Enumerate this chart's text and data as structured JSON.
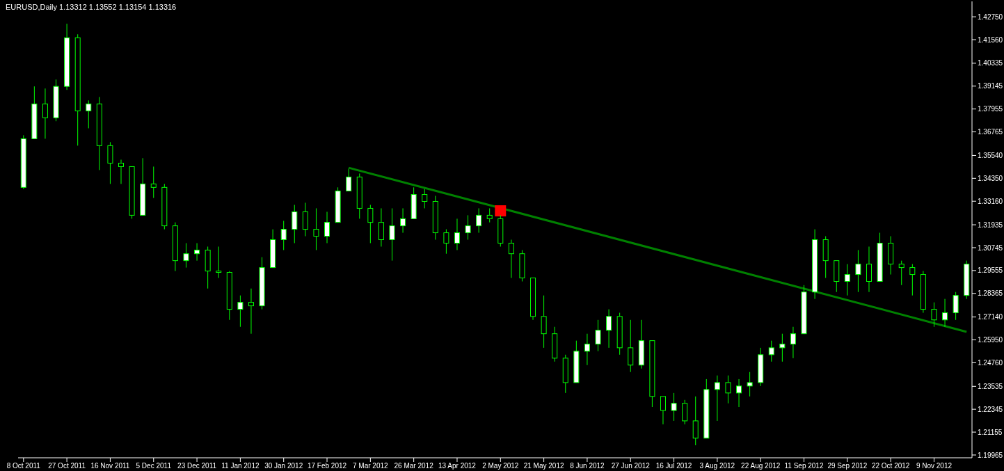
{
  "chart_data": {
    "type": "candlestick",
    "title": "EURUSD,Daily 1.13312 1.13552 1.13154 1.13316",
    "color": "#00ff00",
    "categories": [
      "8 Oct 2011",
      null,
      null,
      null,
      "27 Oct 2011",
      null,
      null,
      null,
      "16 Nov 2011",
      null,
      null,
      null,
      "5 Dec 2011",
      null,
      null,
      null,
      "23 Dec 2011",
      null,
      null,
      null,
      "11 Jan 2012",
      null,
      null,
      null,
      "30 Jan 2012",
      null,
      null,
      null,
      "17 Feb 2012",
      null,
      null,
      null,
      "7 Mar 2012",
      null,
      null,
      null,
      "26 Mar 2012",
      null,
      null,
      null,
      "13 Apr 2012",
      null,
      null,
      null,
      "2 May 2012",
      null,
      null,
      null,
      "21 May 2012",
      null,
      null,
      null,
      "8 Jun 2012",
      null,
      null,
      null,
      "27 Jun 2012",
      null,
      null,
      null,
      "16 Jul 2012",
      null,
      null,
      null,
      "3 Aug 2012",
      null,
      null,
      null,
      "22 Aug 2012",
      null,
      null,
      null,
      "11 Sep 2012",
      null,
      null,
      null,
      "29 Sep 2012",
      null,
      null,
      null,
      "22 Oct 2012",
      null,
      null,
      null,
      "9 Nov 2012",
      null,
      null,
      null
    ],
    "ohlc": [
      [
        1.3388,
        1.3659,
        1.338,
        1.3641
      ],
      [
        1.3641,
        1.3913,
        1.3641,
        1.3822
      ],
      [
        1.3822,
        1.3902,
        1.3641,
        1.375
      ],
      [
        1.375,
        1.3949,
        1.3732,
        1.3913
      ],
      [
        1.3913,
        1.4239,
        1.3895,
        1.4166
      ],
      [
        1.4166,
        1.4184,
        1.3605,
        1.3786
      ],
      [
        1.3786,
        1.384,
        1.3695,
        1.3822
      ],
      [
        1.3822,
        1.3858,
        1.3478,
        1.3605
      ],
      [
        1.3605,
        1.3623,
        1.3406,
        1.3514
      ],
      [
        1.3514,
        1.3532,
        1.3406,
        1.3496
      ],
      [
        1.3496,
        1.3496,
        1.3225,
        1.3243
      ],
      [
        1.3243,
        1.354,
        1.3243,
        1.3406
      ],
      [
        1.3406,
        1.3496,
        1.3333,
        1.3388
      ],
      [
        1.3388,
        1.3406,
        1.317,
        1.3188
      ],
      [
        1.3188,
        1.3206,
        1.2953,
        1.3007
      ],
      [
        1.3007,
        1.3098,
        1.2971,
        1.3043
      ],
      [
        1.3043,
        1.3098,
        1.3007,
        1.3062
      ],
      [
        1.3062,
        1.308,
        1.2862,
        1.2953
      ],
      [
        1.2953,
        1.308,
        1.2917,
        1.2946
      ],
      [
        1.2946,
        1.2953,
        1.2699,
        1.2754
      ],
      [
        1.2754,
        1.2826,
        1.2663,
        1.279
      ],
      [
        1.279,
        1.2862,
        1.2627,
        1.2772
      ],
      [
        1.2772,
        1.3025,
        1.2754,
        1.2971
      ],
      [
        1.2971,
        1.317,
        1.2971,
        1.3116
      ],
      [
        1.3116,
        1.3214,
        1.3062,
        1.317
      ],
      [
        1.317,
        1.3297,
        1.3098,
        1.3261
      ],
      [
        1.3261,
        1.3308,
        1.3134,
        1.317
      ],
      [
        1.317,
        1.3279,
        1.3062,
        1.3134
      ],
      [
        1.3134,
        1.3261,
        1.3098,
        1.3206
      ],
      [
        1.3206,
        1.3388,
        1.3206,
        1.3369
      ],
      [
        1.3369,
        1.3485,
        1.3369,
        1.3442
      ],
      [
        1.3442,
        1.346,
        1.3225,
        1.3279
      ],
      [
        1.3279,
        1.3297,
        1.3098,
        1.3206
      ],
      [
        1.3206,
        1.3279,
        1.308,
        1.3116
      ],
      [
        1.3116,
        1.3279,
        1.3007,
        1.3188
      ],
      [
        1.3188,
        1.3279,
        1.3152,
        1.3225
      ],
      [
        1.3225,
        1.3388,
        1.3225,
        1.3351
      ],
      [
        1.3351,
        1.338,
        1.3279,
        1.3315
      ],
      [
        1.3315,
        1.3344,
        1.3116,
        1.3152
      ],
      [
        1.3152,
        1.317,
        1.3043,
        1.3098
      ],
      [
        1.3098,
        1.3225,
        1.3062,
        1.3152
      ],
      [
        1.3152,
        1.3243,
        1.3116,
        1.3188
      ],
      [
        1.3188,
        1.3279,
        1.3152,
        1.3243
      ],
      [
        1.3243,
        1.3279,
        1.3206,
        1.3225
      ],
      [
        1.3225,
        1.3243,
        1.308,
        1.3098
      ],
      [
        1.3098,
        1.3116,
        1.2917,
        1.3043
      ],
      [
        1.3043,
        1.3062,
        1.2899,
        1.2917
      ],
      [
        1.2917,
        1.2917,
        1.2699,
        1.2717
      ],
      [
        1.2717,
        1.2826,
        1.2554,
        1.2627
      ],
      [
        1.2627,
        1.2663,
        1.2482,
        1.25
      ],
      [
        1.25,
        1.2518,
        1.2319,
        1.2373
      ],
      [
        1.2373,
        1.2591,
        1.2373,
        1.2536
      ],
      [
        1.2536,
        1.2627,
        1.2464,
        1.2573
      ],
      [
        1.2573,
        1.2699,
        1.2536,
        1.2645
      ],
      [
        1.2645,
        1.2754,
        1.2554,
        1.2717
      ],
      [
        1.2717,
        1.2736,
        1.2518,
        1.2554
      ],
      [
        1.2554,
        1.2699,
        1.2428,
        1.2464
      ],
      [
        1.2464,
        1.2699,
        1.2446,
        1.2591
      ],
      [
        1.2591,
        1.2591,
        1.2246,
        1.2301
      ],
      [
        1.2301,
        1.2301,
        1.2156,
        1.2228
      ],
      [
        1.2228,
        1.2319,
        1.2174,
        1.2265
      ],
      [
        1.2265,
        1.2283,
        1.2156,
        1.2174
      ],
      [
        1.2174,
        1.2301,
        1.2047,
        1.2084
      ],
      [
        1.2084,
        1.2391,
        1.2084,
        1.2337
      ],
      [
        1.2337,
        1.241,
        1.2174,
        1.2373
      ],
      [
        1.2373,
        1.241,
        1.2265,
        1.2319
      ],
      [
        1.2319,
        1.2391,
        1.2246,
        1.2355
      ],
      [
        1.2355,
        1.2428,
        1.2301,
        1.2373
      ],
      [
        1.2373,
        1.2554,
        1.2355,
        1.2518
      ],
      [
        1.2518,
        1.2591,
        1.2482,
        1.2554
      ],
      [
        1.2554,
        1.2627,
        1.2482,
        1.2573
      ],
      [
        1.2573,
        1.2663,
        1.25,
        1.2627
      ],
      [
        1.2627,
        1.288,
        1.2627,
        1.2844
      ],
      [
        1.2844,
        1.317,
        1.2808,
        1.3116
      ],
      [
        1.3116,
        1.3134,
        1.2917,
        1.3007
      ],
      [
        1.3007,
        1.3007,
        1.2844,
        1.2899
      ],
      [
        1.2899,
        1.2989,
        1.2826,
        1.2935
      ],
      [
        1.2935,
        1.3062,
        1.2844,
        1.2989
      ],
      [
        1.2989,
        1.308,
        1.2844,
        1.2899
      ],
      [
        1.2899,
        1.3152,
        1.2899,
        1.3098
      ],
      [
        1.3098,
        1.3134,
        1.2935,
        1.2989
      ],
      [
        1.2989,
        1.3007,
        1.288,
        1.2971
      ],
      [
        1.2971,
        1.2989,
        1.2826,
        1.2935
      ],
      [
        1.2935,
        1.2953,
        1.2736,
        1.2754
      ],
      [
        1.2754,
        1.279,
        1.2663,
        1.2699
      ],
      [
        1.2699,
        1.2808,
        1.2663,
        1.2736
      ],
      [
        1.2736,
        1.2844,
        1.2699,
        1.2826
      ],
      [
        1.2826,
        1.3007,
        1.2808,
        1.2989
      ]
    ],
    "series": [
      {
        "type": "line",
        "color": "#008000",
        "values": [
          null,
          null,
          null,
          null,
          null,
          null,
          null,
          null,
          null,
          null,
          null,
          null,
          null,
          null,
          null,
          null,
          null,
          null,
          null,
          null,
          null,
          null,
          null,
          null,
          null,
          null,
          null,
          null,
          null,
          null,
          1.349,
          null,
          null,
          null,
          null,
          null,
          null,
          null,
          null,
          null,
          null,
          null,
          null,
          null,
          null,
          null,
          null,
          null,
          null,
          null,
          null,
          null,
          null,
          null,
          null,
          null,
          null,
          null,
          null,
          null,
          null,
          null,
          null,
          null,
          null,
          null,
          null,
          null,
          null,
          null,
          null,
          null,
          null,
          null,
          null,
          null,
          null,
          null,
          null,
          null,
          null,
          null,
          null,
          null,
          null,
          null,
          null,
          1.2637
        ]
      },
      {
        "type": "scatter",
        "color": "#ff0000",
        "marker": "square",
        "values": [
          null,
          null,
          null,
          null,
          null,
          null,
          null,
          null,
          null,
          null,
          null,
          null,
          null,
          null,
          null,
          null,
          null,
          null,
          null,
          null,
          null,
          null,
          null,
          null,
          null,
          null,
          null,
          null,
          null,
          null,
          null,
          null,
          null,
          null,
          null,
          null,
          null,
          null,
          null,
          null,
          null,
          null,
          null,
          null,
          1.3266,
          null,
          null,
          null,
          null,
          null,
          null,
          null,
          null,
          null,
          null,
          null,
          null,
          null,
          null,
          null,
          null,
          null,
          null,
          null,
          null,
          null,
          null,
          null,
          null,
          null,
          null,
          null,
          null,
          null,
          null,
          null,
          null,
          null,
          null,
          null,
          null,
          null,
          null,
          null,
          null,
          null,
          null,
          null
        ]
      }
    ],
    "ylim": [
      1.1982,
      1.4355
    ],
    "yticks": [
      {
        "value": 1.4275,
        "label": "1.42750"
      },
      {
        "value": 1.4156,
        "label": "1.41560"
      },
      {
        "value": 1.40335,
        "label": "1.40335"
      },
      {
        "value": 1.39145,
        "label": "1.39145"
      },
      {
        "value": 1.37955,
        "label": "1.37955"
      },
      {
        "value": 1.36765,
        "label": "1.36765"
      },
      {
        "value": 1.3554,
        "label": "1.35540"
      },
      {
        "value": 1.3435,
        "label": "1.34350"
      },
      {
        "value": 1.3316,
        "label": "1.33160"
      },
      {
        "value": 1.31935,
        "label": "1.31935"
      },
      {
        "value": 1.30745,
        "label": "1.30745"
      },
      {
        "value": 1.29555,
        "label": "1.29555"
      },
      {
        "value": 1.28365,
        "label": "1.28365"
      },
      {
        "value": 1.2714,
        "label": "1.27140"
      },
      {
        "value": 1.2595,
        "label": "1.25950"
      },
      {
        "value": 1.2476,
        "label": "1.24760"
      },
      {
        "value": 1.23535,
        "label": "1.23535"
      },
      {
        "value": 1.22345,
        "label": "1.22345"
      },
      {
        "value": 1.21155,
        "label": "1.21155"
      },
      {
        "value": 1.19965,
        "label": "1.19965"
      }
    ]
  }
}
